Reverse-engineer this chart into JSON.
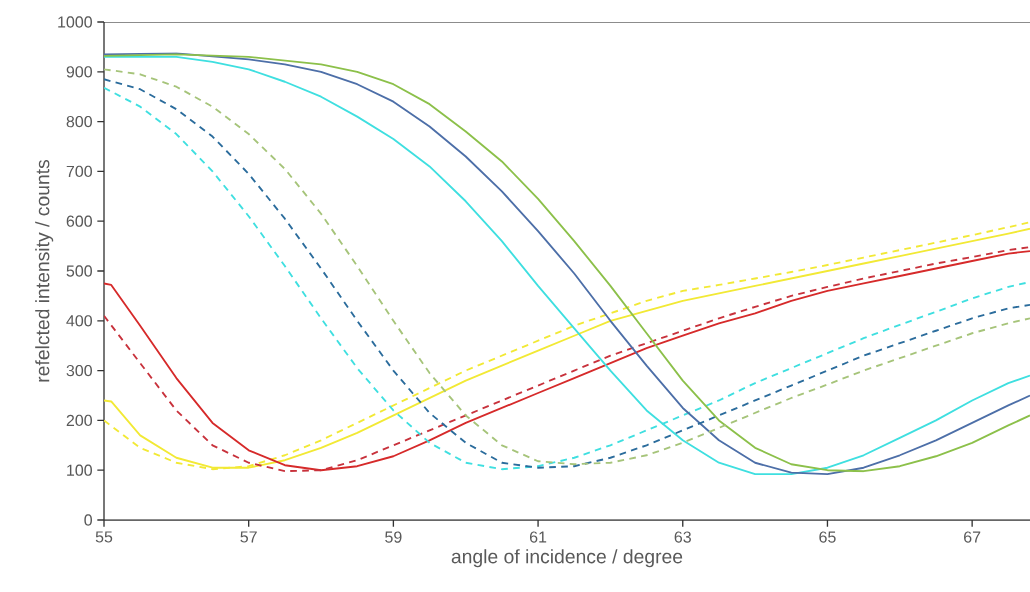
{
  "chart_data": {
    "type": "line",
    "xlabel": "angle of incidence  / degree",
    "ylabel": "refelcted intensity  / counts",
    "xlim": [
      55,
      67.8
    ],
    "xticks": [
      55,
      57,
      59,
      61,
      63,
      65,
      67
    ],
    "ylim": [
      0,
      1000
    ],
    "yticks": [
      0,
      100,
      200,
      300,
      400,
      500,
      600,
      700,
      800,
      900,
      1000
    ],
    "marker": "none",
    "series": [
      {
        "color": "#f2e935",
        "line_style": "solid",
        "x": [
          55,
          55.1,
          55.5,
          56,
          56.5,
          57,
          57.5,
          58,
          58.5,
          59,
          59.5,
          60,
          60.5,
          61,
          61.5,
          62,
          62.5,
          63,
          63.5,
          64,
          64.5,
          65,
          65.5,
          66,
          66.5,
          67,
          67.5,
          67.8
        ],
        "values": [
          240,
          238,
          170,
          125,
          105,
          105,
          120,
          145,
          175,
          210,
          245,
          280,
          310,
          340,
          370,
          400,
          420,
          440,
          455,
          470,
          485,
          500,
          515,
          530,
          545,
          560,
          575,
          585
        ]
      },
      {
        "color": "#f2e935",
        "line_style": "dashed",
        "x": [
          55,
          55.5,
          56,
          56.5,
          57,
          57.5,
          58,
          58.5,
          59,
          59.5,
          60,
          60.5,
          61,
          61.5,
          62,
          62.5,
          63,
          63.5,
          64,
          64.5,
          65,
          65.5,
          66,
          66.5,
          67,
          67.5,
          67.8
        ],
        "values": [
          200,
          145,
          115,
          102,
          108,
          130,
          160,
          195,
          230,
          265,
          300,
          330,
          360,
          390,
          415,
          440,
          460,
          472,
          485,
          498,
          512,
          527,
          542,
          557,
          572,
          588,
          598
        ]
      },
      {
        "color": "#d62a2a",
        "line_style": "solid",
        "x": [
          55,
          55.1,
          55.5,
          56,
          56.5,
          57,
          57.5,
          58,
          58.5,
          59,
          59.5,
          60,
          60.5,
          61,
          61.5,
          62,
          62.5,
          63,
          63.5,
          64,
          64.5,
          65,
          65.5,
          66,
          66.5,
          67,
          67.5,
          67.8
        ],
        "values": [
          475,
          472,
          390,
          285,
          195,
          140,
          110,
          100,
          108,
          128,
          160,
          195,
          225,
          255,
          285,
          315,
          345,
          370,
          395,
          415,
          440,
          460,
          475,
          490,
          505,
          520,
          535,
          540
        ]
      },
      {
        "color": "#c8323c",
        "line_style": "dashed",
        "x": [
          55,
          55.5,
          56,
          56.5,
          57,
          57.5,
          58,
          58.5,
          59,
          59.5,
          60,
          60.5,
          61,
          61.5,
          62,
          62.5,
          63,
          63.5,
          64,
          64.5,
          65,
          65.5,
          66,
          66.5,
          67,
          67.5,
          67.8
        ],
        "values": [
          410,
          315,
          220,
          150,
          115,
          98,
          100,
          120,
          150,
          180,
          210,
          240,
          270,
          300,
          330,
          355,
          380,
          405,
          428,
          450,
          468,
          485,
          500,
          515,
          528,
          542,
          548
        ]
      },
      {
        "color": "#3fdfe0",
        "line_style": "solid",
        "x": [
          55,
          56,
          56.5,
          57,
          57.5,
          58,
          58.5,
          59,
          59.5,
          60,
          60.5,
          61,
          61.5,
          62,
          62.5,
          63,
          63.5,
          64,
          64.5,
          65,
          65.5,
          66,
          66.5,
          67,
          67.5,
          67.8
        ],
        "values": [
          930,
          930,
          920,
          905,
          880,
          850,
          810,
          765,
          710,
          640,
          560,
          470,
          385,
          300,
          220,
          160,
          115,
          92,
          92,
          105,
          130,
          165,
          200,
          240,
          275,
          290
        ]
      },
      {
        "color": "#3fdfe0",
        "line_style": "dashed",
        "x": [
          55,
          55.5,
          56,
          56.5,
          57,
          57.5,
          58,
          58.5,
          59,
          59.5,
          60,
          60.5,
          61,
          61.5,
          62,
          62.5,
          63,
          63.5,
          64,
          64.5,
          65,
          65.5,
          66,
          66.5,
          67,
          67.5,
          67.8
        ],
        "values": [
          868,
          830,
          775,
          700,
          610,
          510,
          405,
          305,
          220,
          155,
          115,
          102,
          108,
          125,
          150,
          180,
          210,
          240,
          275,
          305,
          335,
          365,
          392,
          418,
          445,
          468,
          478
        ]
      },
      {
        "color": "#4d6fa8",
        "line_style": "solid",
        "x": [
          55,
          56,
          57,
          57.5,
          58,
          58.5,
          59,
          59.5,
          60,
          60.5,
          61,
          61.5,
          62,
          62.5,
          63,
          63.5,
          64,
          64.5,
          65,
          65.5,
          66,
          66.5,
          67,
          67.5,
          67.8
        ],
        "values": [
          935,
          937,
          925,
          915,
          900,
          875,
          840,
          790,
          730,
          660,
          580,
          495,
          400,
          310,
          225,
          160,
          115,
          95,
          92,
          105,
          130,
          160,
          195,
          230,
          250
        ]
      },
      {
        "color": "#2b6c9c",
        "line_style": "dashed",
        "x": [
          55,
          55.5,
          56,
          56.5,
          57,
          57.5,
          58,
          58.5,
          59,
          59.5,
          60,
          60.5,
          61,
          61.5,
          62,
          62.5,
          63,
          63.5,
          64,
          64.5,
          65,
          65.5,
          66,
          66.5,
          67,
          67.5,
          67.8
        ],
        "values": [
          885,
          865,
          825,
          770,
          695,
          605,
          505,
          400,
          300,
          215,
          155,
          115,
          105,
          108,
          125,
          150,
          180,
          210,
          240,
          270,
          300,
          330,
          355,
          380,
          405,
          425,
          432
        ]
      },
      {
        "color": "#8cc04a",
        "line_style": "solid",
        "x": [
          55,
          56,
          57,
          58,
          58.5,
          59,
          59.5,
          60,
          60.5,
          61,
          61.5,
          62,
          62.5,
          63,
          63.5,
          64,
          64.5,
          65,
          65.5,
          66,
          66.5,
          67,
          67.5,
          67.8
        ],
        "values": [
          932,
          935,
          930,
          915,
          900,
          875,
          835,
          780,
          720,
          645,
          560,
          470,
          375,
          280,
          200,
          145,
          112,
          100,
          98,
          108,
          128,
          155,
          190,
          210
        ]
      },
      {
        "color": "#a6c47a",
        "line_style": "dashed",
        "x": [
          55,
          55.5,
          56,
          56.5,
          57,
          57.5,
          58,
          58.5,
          59,
          59.5,
          60,
          60.5,
          61,
          61.5,
          62,
          62.5,
          63,
          63.5,
          64,
          64.5,
          65,
          65.5,
          66,
          66.5,
          67,
          67.5,
          67.8
        ],
        "values": [
          905,
          895,
          870,
          830,
          775,
          705,
          615,
          510,
          400,
          295,
          210,
          150,
          118,
          112,
          115,
          130,
          155,
          185,
          215,
          245,
          272,
          300,
          325,
          350,
          375,
          395,
          405
        ]
      }
    ]
  }
}
